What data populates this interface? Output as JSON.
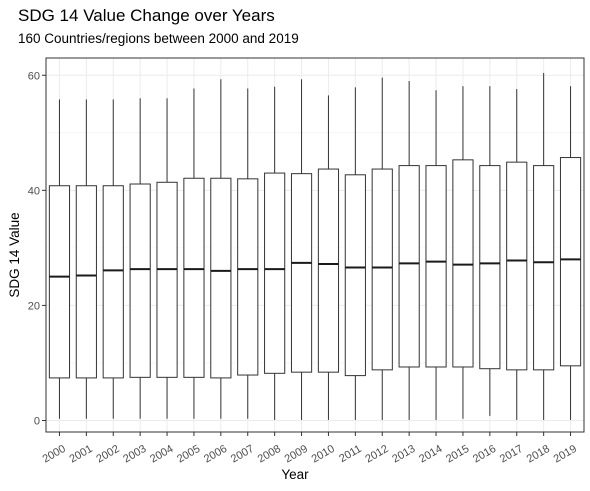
{
  "chart_data": {
    "type": "boxplot",
    "title": "SDG 14 Value Change over Years",
    "subtitle": "160 Countries/regions between 2000 and 2019",
    "xlabel": "Year",
    "ylabel": "SDG 14 Value",
    "ylim": [
      -2,
      63
    ],
    "yticks": [
      0,
      20,
      40,
      60
    ],
    "grid": true,
    "categories": [
      "2000",
      "2001",
      "2002",
      "2003",
      "2004",
      "2005",
      "2006",
      "2007",
      "2008",
      "2009",
      "2010",
      "2011",
      "2012",
      "2013",
      "2014",
      "2015",
      "2016",
      "2017",
      "2018",
      "2019"
    ],
    "boxes": [
      {
        "min": 0.3,
        "q1": 7.4,
        "median": 25.0,
        "q3": 40.8,
        "max": 55.8
      },
      {
        "min": 0.3,
        "q1": 7.4,
        "median": 25.2,
        "q3": 40.8,
        "max": 55.8
      },
      {
        "min": 0.3,
        "q1": 7.4,
        "median": 26.1,
        "q3": 40.8,
        "max": 55.8
      },
      {
        "min": 0.3,
        "q1": 7.5,
        "median": 26.3,
        "q3": 41.1,
        "max": 56.0
      },
      {
        "min": 0.3,
        "q1": 7.5,
        "median": 26.3,
        "q3": 41.4,
        "max": 56.0
      },
      {
        "min": 0.3,
        "q1": 7.5,
        "median": 26.3,
        "q3": 42.1,
        "max": 57.7
      },
      {
        "min": 0.3,
        "q1": 7.4,
        "median": 26.0,
        "q3": 42.1,
        "max": 59.3
      },
      {
        "min": 0.3,
        "q1": 7.9,
        "median": 26.3,
        "q3": 42.0,
        "max": 57.7
      },
      {
        "min": 0.1,
        "q1": 8.2,
        "median": 26.3,
        "q3": 43.0,
        "max": 58.0
      },
      {
        "min": 0.1,
        "q1": 8.4,
        "median": 27.4,
        "q3": 42.9,
        "max": 59.3
      },
      {
        "min": 0.1,
        "q1": 8.4,
        "median": 27.2,
        "q3": 43.7,
        "max": 56.5
      },
      {
        "min": 0.1,
        "q1": 7.8,
        "median": 26.6,
        "q3": 42.7,
        "max": 57.9
      },
      {
        "min": 0.1,
        "q1": 8.8,
        "median": 26.6,
        "q3": 43.7,
        "max": 59.6
      },
      {
        "min": 0.1,
        "q1": 9.3,
        "median": 27.3,
        "q3": 44.3,
        "max": 59.0
      },
      {
        "min": 0.1,
        "q1": 9.3,
        "median": 27.6,
        "q3": 44.3,
        "max": 57.4
      },
      {
        "min": 0.3,
        "q1": 9.3,
        "median": 27.1,
        "q3": 45.3,
        "max": 58.1
      },
      {
        "min": 0.8,
        "q1": 9.0,
        "median": 27.3,
        "q3": 44.3,
        "max": 58.1
      },
      {
        "min": 0.1,
        "q1": 8.8,
        "median": 27.8,
        "q3": 44.9,
        "max": 57.6
      },
      {
        "min": 0.1,
        "q1": 8.8,
        "median": 27.5,
        "q3": 44.3,
        "max": 60.4
      },
      {
        "min": 0.1,
        "q1": 9.5,
        "median": 28.0,
        "q3": 45.7,
        "max": 58.1
      }
    ]
  }
}
